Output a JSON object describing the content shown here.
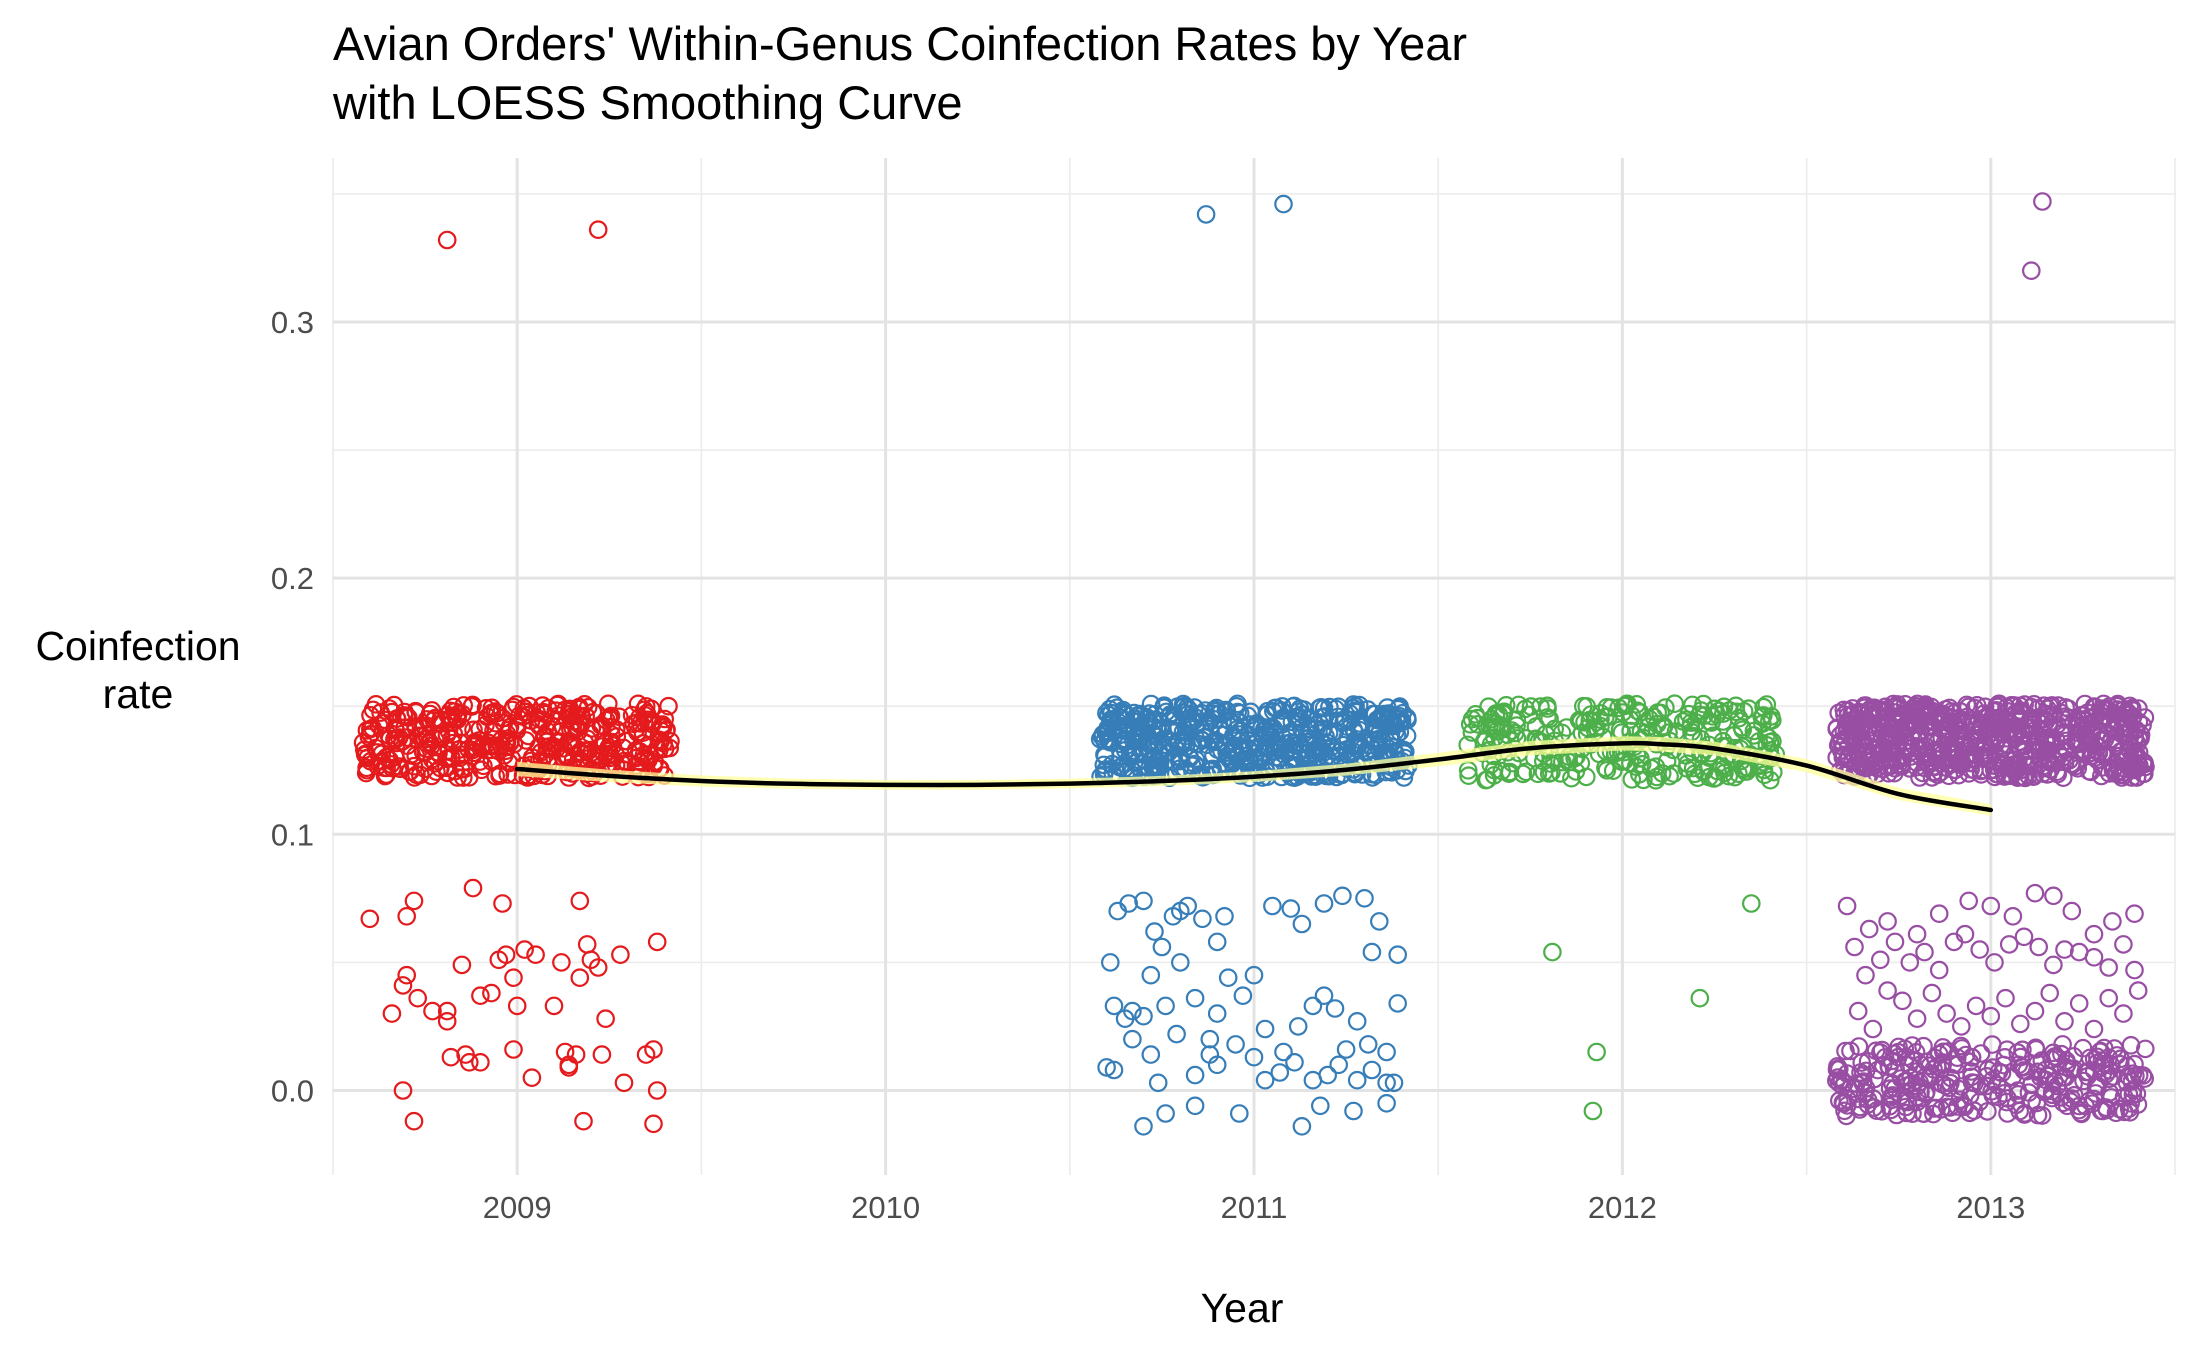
{
  "chart_data": {
    "type": "scatter",
    "title": "Avian Orders' Within-Genus Coinfection Rates by Year",
    "subtitle": "with LOESS Smoothing Curve",
    "xlabel": "Year",
    "ylabel": [
      "Coinfection",
      "rate"
    ],
    "xlim": [
      2008.5,
      2013.5
    ],
    "ylim": [
      -0.033,
      0.364
    ],
    "x_ticks": [
      2009,
      2010,
      2011,
      2012,
      2013
    ],
    "x_tick_labels": [
      "2009",
      "2010",
      "2011",
      "2012",
      "2013"
    ],
    "y_ticks": [
      0.0,
      0.1,
      0.2,
      0.3
    ],
    "y_tick_labels": [
      "0.0",
      "0.1",
      "0.2",
      "0.3"
    ],
    "grid": true,
    "legend": "none",
    "marker": "open-circle",
    "jitter_width": 0.42,
    "series": [
      {
        "year": 2009,
        "color": "#E41A1C",
        "band": {
          "ymin": 0.122,
          "ymax": 0.151,
          "count": 420
        },
        "points": [
          [
            2008.81,
            0.332
          ],
          [
            2009.22,
            0.336
          ],
          [
            2008.6,
            0.067
          ],
          [
            2008.7,
            0.068
          ],
          [
            2008.72,
            0.074
          ],
          [
            2008.88,
            0.079
          ],
          [
            2008.96,
            0.073
          ],
          [
            2009.17,
            0.074
          ],
          [
            2009.38,
            0.058
          ],
          [
            2008.7,
            0.045
          ],
          [
            2008.69,
            0.041
          ],
          [
            2008.66,
            0.03
          ],
          [
            2008.73,
            0.036
          ],
          [
            2008.77,
            0.031
          ],
          [
            2008.81,
            0.031
          ],
          [
            2008.81,
            0.027
          ],
          [
            2008.82,
            0.013
          ],
          [
            2008.86,
            0.014
          ],
          [
            2008.87,
            0.011
          ],
          [
            2008.9,
            0.011
          ],
          [
            2008.85,
            0.049
          ],
          [
            2008.9,
            0.037
          ],
          [
            2008.93,
            0.038
          ],
          [
            2008.95,
            0.051
          ],
          [
            2008.97,
            0.053
          ],
          [
            2008.99,
            0.044
          ],
          [
            2008.99,
            0.016
          ],
          [
            2009.0,
            0.033
          ],
          [
            2009.02,
            0.055
          ],
          [
            2009.05,
            0.053
          ],
          [
            2009.1,
            0.033
          ],
          [
            2009.12,
            0.05
          ],
          [
            2009.13,
            0.015
          ],
          [
            2009.14,
            0.01
          ],
          [
            2009.16,
            0.014
          ],
          [
            2009.17,
            0.044
          ],
          [
            2009.19,
            0.057
          ],
          [
            2009.2,
            0.051
          ],
          [
            2009.22,
            0.048
          ],
          [
            2009.23,
            0.014
          ],
          [
            2009.24,
            0.028
          ],
          [
            2009.28,
            0.053
          ],
          [
            2009.29,
            0.003
          ],
          [
            2009.35,
            0.014
          ],
          [
            2009.37,
            0.016
          ],
          [
            2009.38,
            0.0
          ],
          [
            2008.69,
            0.0
          ],
          [
            2008.72,
            -0.012
          ],
          [
            2009.04,
            0.005
          ],
          [
            2009.14,
            0.009
          ],
          [
            2009.18,
            -0.012
          ],
          [
            2009.37,
            -0.013
          ]
        ]
      },
      {
        "year": 2011,
        "color": "#377EB8",
        "band": {
          "ymin": 0.122,
          "ymax": 0.151,
          "count": 560
        },
        "points": [
          [
            2010.87,
            0.342
          ],
          [
            2011.08,
            0.346
          ],
          [
            2010.61,
            0.05
          ],
          [
            2010.63,
            0.07
          ],
          [
            2010.66,
            0.073
          ],
          [
            2010.7,
            0.074
          ],
          [
            2010.73,
            0.062
          ],
          [
            2010.75,
            0.056
          ],
          [
            2010.78,
            0.068
          ],
          [
            2010.8,
            0.07
          ],
          [
            2010.82,
            0.072
          ],
          [
            2010.86,
            0.067
          ],
          [
            2010.9,
            0.058
          ],
          [
            2010.92,
            0.068
          ],
          [
            2011.05,
            0.072
          ],
          [
            2011.1,
            0.071
          ],
          [
            2011.13,
            0.065
          ],
          [
            2011.19,
            0.073
          ],
          [
            2011.24,
            0.076
          ],
          [
            2011.3,
            0.075
          ],
          [
            2011.34,
            0.066
          ],
          [
            2011.32,
            0.054
          ],
          [
            2011.39,
            0.053
          ],
          [
            2010.62,
            0.033
          ],
          [
            2010.65,
            0.028
          ],
          [
            2010.67,
            0.031
          ],
          [
            2010.7,
            0.029
          ],
          [
            2010.72,
            0.045
          ],
          [
            2010.76,
            0.033
          ],
          [
            2010.8,
            0.05
          ],
          [
            2010.84,
            0.036
          ],
          [
            2010.88,
            0.02
          ],
          [
            2010.9,
            0.03
          ],
          [
            2010.93,
            0.044
          ],
          [
            2010.97,
            0.037
          ],
          [
            2011.0,
            0.045
          ],
          [
            2011.03,
            0.024
          ],
          [
            2011.08,
            0.015
          ],
          [
            2011.12,
            0.025
          ],
          [
            2011.16,
            0.033
          ],
          [
            2011.19,
            0.037
          ],
          [
            2011.22,
            0.032
          ],
          [
            2011.25,
            0.016
          ],
          [
            2011.28,
            0.027
          ],
          [
            2011.31,
            0.018
          ],
          [
            2011.36,
            0.015
          ],
          [
            2011.39,
            0.034
          ],
          [
            2010.6,
            0.009
          ],
          [
            2010.62,
            0.008
          ],
          [
            2010.67,
            0.02
          ],
          [
            2010.72,
            0.014
          ],
          [
            2010.74,
            0.003
          ],
          [
            2010.79,
            0.022
          ],
          [
            2010.84,
            0.006
          ],
          [
            2010.88,
            0.014
          ],
          [
            2010.9,
            0.01
          ],
          [
            2010.95,
            0.018
          ],
          [
            2011.0,
            0.013
          ],
          [
            2011.03,
            0.004
          ],
          [
            2011.07,
            0.007
          ],
          [
            2011.11,
            0.011
          ],
          [
            2011.16,
            0.004
          ],
          [
            2011.2,
            0.006
          ],
          [
            2011.23,
            0.01
          ],
          [
            2011.28,
            0.004
          ],
          [
            2011.32,
            0.008
          ],
          [
            2011.36,
            0.003
          ],
          [
            2011.38,
            0.003
          ],
          [
            2010.7,
            -0.014
          ],
          [
            2010.76,
            -0.009
          ],
          [
            2010.84,
            -0.006
          ],
          [
            2010.96,
            -0.009
          ],
          [
            2011.13,
            -0.014
          ],
          [
            2011.18,
            -0.006
          ],
          [
            2011.27,
            -0.008
          ],
          [
            2011.36,
            -0.005
          ]
        ]
      },
      {
        "year": 2012,
        "color": "#4DAF4A",
        "band": {
          "ymin": 0.121,
          "ymax": 0.151,
          "count": 290
        },
        "points": [
          [
            2011.81,
            0.054
          ],
          [
            2012.35,
            0.073
          ],
          [
            2012.21,
            0.036
          ],
          [
            2011.93,
            0.015
          ],
          [
            2011.92,
            -0.008
          ]
        ]
      },
      {
        "year": 2013,
        "color": "#984EA3",
        "band": {
          "ymin": 0.122,
          "ymax": 0.151,
          "count": 700
        },
        "low_cluster": {
          "ymin": -0.01,
          "ymax": 0.018,
          "count": 300
        },
        "points": [
          [
            2013.14,
            0.347
          ],
          [
            2013.11,
            0.32
          ],
          [
            2012.61,
            0.072
          ],
          [
            2012.67,
            0.063
          ],
          [
            2012.72,
            0.066
          ],
          [
            2012.8,
            0.061
          ],
          [
            2012.86,
            0.069
          ],
          [
            2012.94,
            0.074
          ],
          [
            2013.0,
            0.072
          ],
          [
            2013.06,
            0.068
          ],
          [
            2013.12,
            0.077
          ],
          [
            2013.17,
            0.076
          ],
          [
            2013.22,
            0.07
          ],
          [
            2013.28,
            0.061
          ],
          [
            2013.33,
            0.066
          ],
          [
            2013.39,
            0.069
          ],
          [
            2012.63,
            0.056
          ],
          [
            2012.66,
            0.045
          ],
          [
            2012.7,
            0.051
          ],
          [
            2012.74,
            0.058
          ],
          [
            2012.78,
            0.05
          ],
          [
            2012.82,
            0.054
          ],
          [
            2012.86,
            0.047
          ],
          [
            2012.9,
            0.058
          ],
          [
            2012.93,
            0.061
          ],
          [
            2012.97,
            0.055
          ],
          [
            2013.01,
            0.05
          ],
          [
            2013.05,
            0.057
          ],
          [
            2013.09,
            0.06
          ],
          [
            2013.13,
            0.056
          ],
          [
            2013.17,
            0.049
          ],
          [
            2013.2,
            0.055
          ],
          [
            2013.24,
            0.054
          ],
          [
            2013.28,
            0.052
          ],
          [
            2013.32,
            0.048
          ],
          [
            2013.36,
            0.057
          ],
          [
            2013.39,
            0.047
          ],
          [
            2012.64,
            0.031
          ],
          [
            2012.68,
            0.024
          ],
          [
            2012.72,
            0.039
          ],
          [
            2012.76,
            0.035
          ],
          [
            2012.8,
            0.028
          ],
          [
            2012.84,
            0.038
          ],
          [
            2012.88,
            0.03
          ],
          [
            2012.92,
            0.025
          ],
          [
            2012.96,
            0.033
          ],
          [
            2013.0,
            0.029
          ],
          [
            2013.04,
            0.036
          ],
          [
            2013.08,
            0.026
          ],
          [
            2013.12,
            0.031
          ],
          [
            2013.16,
            0.038
          ],
          [
            2013.2,
            0.027
          ],
          [
            2013.24,
            0.034
          ],
          [
            2013.28,
            0.024
          ],
          [
            2013.32,
            0.036
          ],
          [
            2013.36,
            0.03
          ],
          [
            2013.4,
            0.039
          ]
        ]
      }
    ],
    "loess": {
      "color": "#000000",
      "ribbon_color": "#FFFF99",
      "x": [
        2009.0,
        2009.25,
        2009.5,
        2009.75,
        2010.0,
        2010.25,
        2010.5,
        2010.75,
        2011.0,
        2011.25,
        2011.5,
        2011.75,
        2012.0,
        2012.1,
        2012.25,
        2012.5,
        2012.75,
        2013.0
      ],
      "y": [
        0.1255,
        0.1228,
        0.1208,
        0.1197,
        0.1193,
        0.1193,
        0.1198,
        0.1208,
        0.1225,
        0.1252,
        0.1292,
        0.1336,
        0.1355,
        0.1352,
        0.1335,
        0.1268,
        0.1157,
        0.1095
      ],
      "ribbon_halfwidth": [
        0.0028,
        0.0024,
        0.0022,
        0.002,
        0.0019,
        0.0019,
        0.0019,
        0.002,
        0.0021,
        0.0023,
        0.0026,
        0.0028,
        0.0028,
        0.0028,
        0.0027,
        0.0026,
        0.0024,
        0.0022
      ]
    }
  }
}
